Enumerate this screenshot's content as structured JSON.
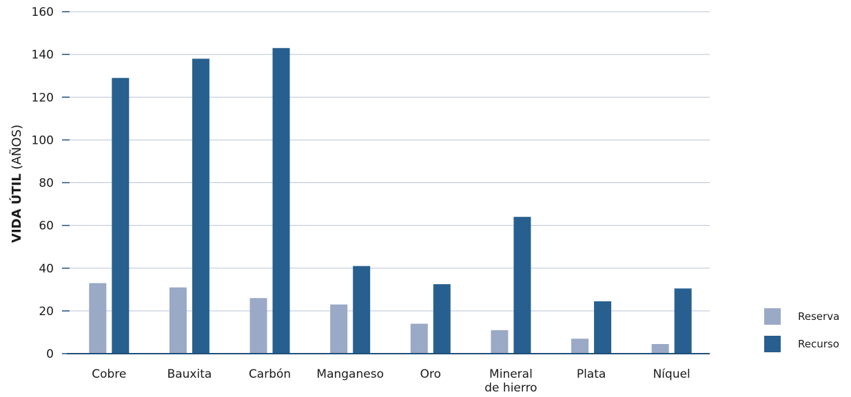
{
  "chart_data": {
    "type": "bar",
    "ylabel_bold": "VIDA ÚTIL",
    "ylabel_rest": "(AÑOS)",
    "ylim": [
      0,
      160
    ],
    "yticks": [
      0,
      20,
      40,
      60,
      80,
      100,
      120,
      140,
      160
    ],
    "grid": true,
    "legend_position": "bottom-right",
    "categories": [
      [
        "Cobre"
      ],
      [
        "Bauxita"
      ],
      [
        "Carbón"
      ],
      [
        "Manganeso"
      ],
      [
        "Oro"
      ],
      [
        "Mineral",
        "de hierro"
      ],
      [
        "Plata"
      ],
      [
        "Níquel"
      ]
    ],
    "series": [
      {
        "name": "Reserva",
        "color": "#99a9c6",
        "values": [
          33,
          31,
          26,
          23,
          14,
          11,
          7,
          4.5
        ]
      },
      {
        "name": "Recurso",
        "color": "#27608f",
        "values": [
          129,
          138,
          143,
          41,
          32.5,
          64,
          24.5,
          30.5
        ]
      }
    ]
  }
}
